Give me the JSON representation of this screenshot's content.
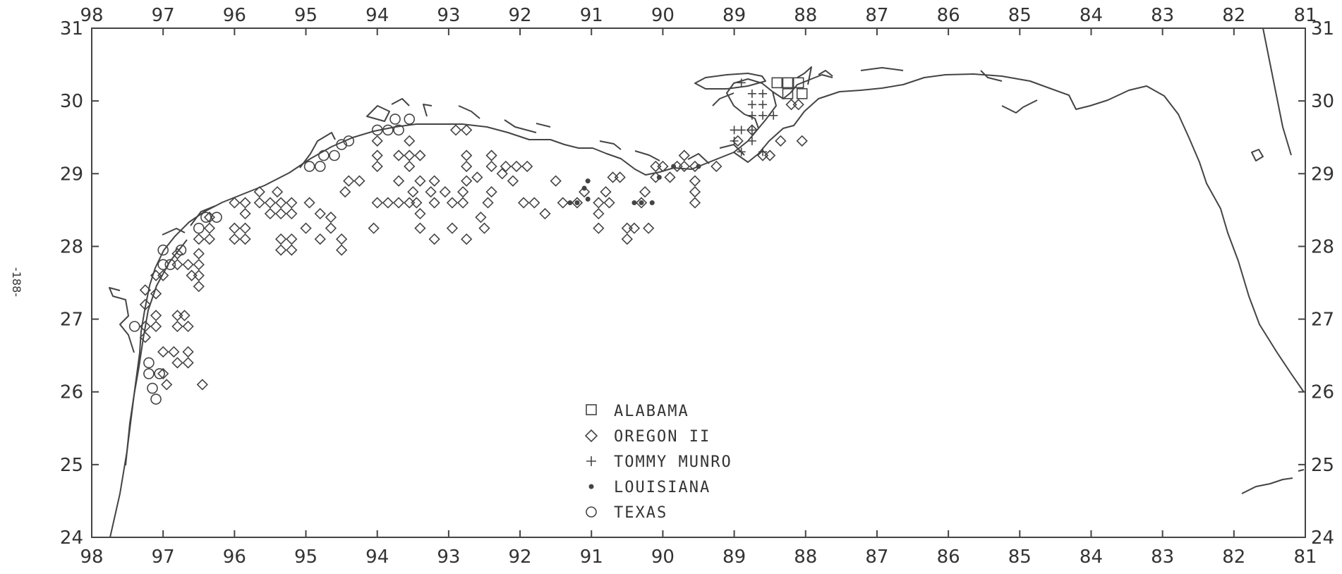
{
  "page_number": "-188-",
  "axes": {
    "lon_ticks": [
      "98",
      "97",
      "96",
      "95",
      "94",
      "93",
      "92",
      "91",
      "90",
      "89",
      "88",
      "87",
      "86",
      "85",
      "84",
      "83",
      "82",
      "81"
    ],
    "lat_ticks": [
      "31",
      "30",
      "29",
      "28",
      "27",
      "26",
      "25",
      "24"
    ],
    "lon_range": [
      98,
      81
    ],
    "lat_range": [
      24,
      31
    ]
  },
  "legend": {
    "position": "bottom-center",
    "items": [
      {
        "label": "ALABAMA",
        "symbol": "square"
      },
      {
        "label": "OREGON II",
        "symbol": "diamond"
      },
      {
        "label": "TOMMY MUNRO",
        "symbol": "plus"
      },
      {
        "label": "LOUISIANA",
        "symbol": "asterisk"
      },
      {
        "label": "TEXAS",
        "symbol": "circle"
      }
    ]
  },
  "stations": {
    "alabama": [
      [
        88.4,
        30.25
      ],
      [
        88.25,
        30.25
      ],
      [
        88.1,
        30.25
      ],
      [
        88.25,
        30.1
      ],
      [
        88.05,
        30.1
      ]
    ],
    "oregon_ii": [
      [
        97.25,
        27.4
      ],
      [
        97.25,
        27.2
      ],
      [
        97.25,
        26.9
      ],
      [
        97.25,
        26.75
      ],
      [
        97.1,
        26.9
      ],
      [
        97.1,
        27.05
      ],
      [
        97.1,
        27.6
      ],
      [
        97.1,
        27.35
      ],
      [
        97.0,
        27.6
      ],
      [
        97.0,
        26.55
      ],
      [
        97.0,
        26.25
      ],
      [
        96.95,
        26.1
      ],
      [
        96.85,
        26.55
      ],
      [
        96.8,
        27.05
      ],
      [
        96.8,
        26.9
      ],
      [
        96.8,
        26.4
      ],
      [
        96.8,
        27.75
      ],
      [
        96.8,
        27.9
      ],
      [
        96.7,
        27.05
      ],
      [
        96.65,
        26.9
      ],
      [
        96.65,
        26.55
      ],
      [
        96.65,
        26.4
      ],
      [
        96.65,
        27.75
      ],
      [
        96.6,
        27.6
      ],
      [
        96.5,
        27.45
      ],
      [
        96.5,
        27.6
      ],
      [
        96.5,
        27.75
      ],
      [
        96.45,
        26.1
      ],
      [
        96.5,
        27.9
      ],
      [
        96.5,
        28.1
      ],
      [
        96.35,
        28.1
      ],
      [
        96.35,
        28.25
      ],
      [
        96.35,
        28.4
      ],
      [
        96.0,
        28.1
      ],
      [
        96.0,
        28.25
      ],
      [
        96.0,
        28.6
      ],
      [
        95.85,
        28.1
      ],
      [
        95.85,
        28.25
      ],
      [
        95.85,
        28.45
      ],
      [
        95.85,
        28.6
      ],
      [
        95.65,
        28.6
      ],
      [
        95.65,
        28.75
      ],
      [
        95.5,
        28.45
      ],
      [
        95.5,
        28.6
      ],
      [
        95.4,
        28.75
      ],
      [
        95.35,
        28.6
      ],
      [
        95.35,
        28.45
      ],
      [
        95.35,
        28.1
      ],
      [
        95.35,
        27.95
      ],
      [
        95.2,
        27.95
      ],
      [
        95.2,
        28.1
      ],
      [
        95.2,
        28.45
      ],
      [
        95.2,
        28.6
      ],
      [
        95.0,
        28.25
      ],
      [
        94.95,
        28.6
      ],
      [
        94.8,
        28.45
      ],
      [
        94.8,
        28.1
      ],
      [
        94.65,
        28.25
      ],
      [
        94.65,
        28.4
      ],
      [
        94.5,
        28.1
      ],
      [
        94.5,
        27.95
      ],
      [
        94.45,
        28.75
      ],
      [
        94.4,
        28.9
      ],
      [
        94.25,
        28.9
      ],
      [
        94.05,
        28.25
      ],
      [
        94.0,
        28.6
      ],
      [
        94.0,
        29.1
      ],
      [
        94.0,
        29.25
      ],
      [
        94.0,
        29.45
      ],
      [
        93.85,
        28.6
      ],
      [
        93.7,
        28.6
      ],
      [
        93.7,
        28.9
      ],
      [
        93.7,
        29.25
      ],
      [
        93.55,
        28.6
      ],
      [
        93.55,
        29.1
      ],
      [
        93.55,
        29.25
      ],
      [
        93.55,
        29.45
      ],
      [
        93.5,
        28.75
      ],
      [
        93.45,
        28.6
      ],
      [
        93.4,
        28.45
      ],
      [
        93.4,
        28.25
      ],
      [
        93.4,
        28.9
      ],
      [
        93.4,
        29.25
      ],
      [
        93.25,
        28.75
      ],
      [
        93.2,
        28.9
      ],
      [
        93.2,
        28.6
      ],
      [
        93.2,
        28.1
      ],
      [
        93.05,
        28.75
      ],
      [
        92.95,
        28.25
      ],
      [
        92.95,
        28.6
      ],
      [
        92.8,
        28.6
      ],
      [
        92.8,
        28.75
      ],
      [
        92.75,
        28.1
      ],
      [
        92.75,
        28.9
      ],
      [
        92.75,
        29.1
      ],
      [
        92.75,
        29.25
      ],
      [
        92.75,
        29.6
      ],
      [
        92.9,
        29.6
      ],
      [
        92.6,
        28.95
      ],
      [
        92.55,
        28.4
      ],
      [
        92.5,
        28.25
      ],
      [
        92.45,
        28.6
      ],
      [
        92.4,
        28.75
      ],
      [
        92.4,
        29.1
      ],
      [
        92.4,
        29.25
      ],
      [
        92.25,
        29.0
      ],
      [
        92.2,
        29.1
      ],
      [
        92.1,
        28.9
      ],
      [
        92.05,
        29.1
      ],
      [
        91.95,
        28.6
      ],
      [
        91.9,
        29.1
      ],
      [
        91.8,
        28.6
      ],
      [
        91.65,
        28.45
      ],
      [
        91.5,
        28.9
      ],
      [
        91.4,
        28.6
      ],
      [
        91.2,
        28.6
      ],
      [
        91.1,
        28.75
      ],
      [
        90.9,
        28.25
      ],
      [
        90.9,
        28.45
      ],
      [
        90.9,
        28.6
      ],
      [
        90.8,
        28.75
      ],
      [
        90.75,
        28.6
      ],
      [
        90.7,
        28.95
      ],
      [
        90.6,
        28.95
      ],
      [
        90.5,
        28.25
      ],
      [
        90.5,
        28.1
      ],
      [
        90.4,
        28.25
      ],
      [
        90.3,
        28.6
      ],
      [
        90.25,
        28.75
      ],
      [
        90.2,
        28.25
      ],
      [
        90.1,
        28.95
      ],
      [
        90.1,
        29.1
      ],
      [
        90.0,
        29.1
      ],
      [
        89.9,
        28.95
      ],
      [
        89.8,
        29.1
      ],
      [
        89.7,
        29.1
      ],
      [
        89.7,
        29.25
      ],
      [
        89.55,
        28.6
      ],
      [
        89.55,
        28.75
      ],
      [
        89.55,
        28.9
      ],
      [
        89.55,
        29.1
      ],
      [
        89.25,
        29.1
      ],
      [
        88.95,
        29.45
      ],
      [
        88.75,
        29.6
      ],
      [
        88.6,
        29.25
      ],
      [
        88.5,
        29.25
      ],
      [
        88.35,
        29.45
      ],
      [
        88.2,
        29.95
      ],
      [
        88.05,
        29.45
      ],
      [
        88.1,
        29.95
      ]
    ],
    "tommy_munro": [
      [
        88.9,
        30.25
      ],
      [
        88.75,
        30.1
      ],
      [
        88.6,
        30.1
      ],
      [
        88.75,
        29.95
      ],
      [
        88.6,
        29.95
      ],
      [
        88.75,
        29.8
      ],
      [
        88.6,
        29.8
      ],
      [
        88.45,
        29.8
      ],
      [
        89.0,
        29.6
      ],
      [
        88.9,
        29.6
      ],
      [
        88.75,
        29.6
      ],
      [
        89.0,
        29.45
      ],
      [
        88.75,
        29.45
      ],
      [
        88.6,
        29.3
      ],
      [
        88.9,
        29.3
      ]
    ],
    "louisiana": [
      [
        91.3,
        28.6
      ],
      [
        91.2,
        28.6
      ],
      [
        91.05,
        28.65
      ],
      [
        91.1,
        28.8
      ],
      [
        91.05,
        28.9
      ],
      [
        90.4,
        28.6
      ],
      [
        90.3,
        28.6
      ],
      [
        90.15,
        28.6
      ],
      [
        90.05,
        28.95
      ],
      [
        89.85,
        29.1
      ],
      [
        89.5,
        29.1
      ]
    ],
    "texas": [
      [
        97.4,
        26.9
      ],
      [
        97.2,
        26.4
      ],
      [
        97.2,
        26.25
      ],
      [
        97.15,
        26.05
      ],
      [
        97.1,
        25.9
      ],
      [
        97.05,
        26.25
      ],
      [
        97.0,
        27.75
      ],
      [
        97.0,
        27.95
      ],
      [
        96.9,
        27.75
      ],
      [
        96.75,
        27.95
      ],
      [
        96.5,
        28.25
      ],
      [
        96.4,
        28.4
      ],
      [
        96.25,
        28.4
      ],
      [
        94.95,
        29.1
      ],
      [
        94.8,
        29.1
      ],
      [
        94.75,
        29.25
      ],
      [
        94.6,
        29.25
      ],
      [
        94.5,
        29.4
      ],
      [
        94.4,
        29.45
      ],
      [
        94.0,
        29.6
      ],
      [
        93.85,
        29.6
      ],
      [
        93.7,
        29.6
      ],
      [
        93.55,
        29.75
      ],
      [
        93.75,
        29.75
      ]
    ]
  }
}
